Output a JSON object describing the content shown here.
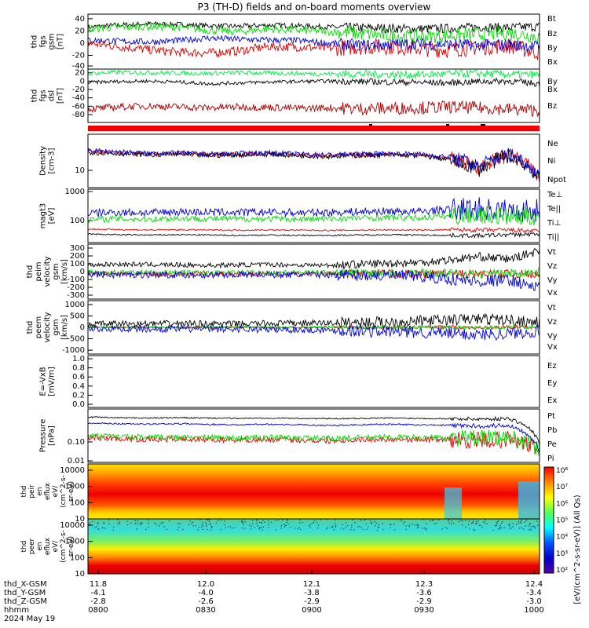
{
  "title": "P3 (TH-D) fields and on-board moments overview",
  "chart_data": [
    {
      "type": "line",
      "panel": "fgs_gsm",
      "ylabel": [
        "thd",
        "fgs",
        "gsm",
        "[nT]"
      ],
      "ylim": [
        -40,
        45
      ],
      "yticks": [
        40,
        20,
        0,
        -20,
        -40
      ],
      "series": [
        {
          "name": "Bt",
          "color": "#000000",
          "values": [
            25,
            28,
            30,
            29,
            27,
            26,
            28,
            27,
            25,
            24,
            23,
            22,
            23,
            25,
            24,
            26
          ]
        },
        {
          "name": "Bz",
          "color": "#dd0000",
          "values": [
            0,
            -5,
            -10,
            -14,
            -15,
            -12,
            -5,
            -6,
            -8,
            -6,
            -5,
            -8,
            -10,
            -6,
            -4,
            -15
          ]
        },
        {
          "name": "By",
          "color": "#00dd00",
          "values": [
            22,
            25,
            26,
            25,
            20,
            18,
            22,
            20,
            18,
            15,
            12,
            10,
            12,
            14,
            16,
            10
          ]
        },
        {
          "name": "Bx",
          "color": "#0000dd",
          "values": [
            5,
            3,
            2,
            4,
            8,
            6,
            5,
            4,
            0,
            -3,
            -2,
            -1,
            -2,
            -3,
            -2,
            -5
          ]
        }
      ]
    },
    {
      "type": "line",
      "panel": "fgs_dsl",
      "ylabel": [
        "thd",
        "fgs",
        "dsl",
        "[nT]"
      ],
      "ylim": [
        -95,
        25
      ],
      "yticks": [
        20,
        0,
        -20,
        -40,
        -60,
        -80
      ],
      "series": [
        {
          "name": "By",
          "color": "#00ee44",
          "values": [
            15,
            18,
            17,
            16,
            15,
            17,
            16,
            15,
            14,
            14,
            13,
            12,
            14,
            15,
            13,
            12
          ]
        },
        {
          "name": "Bx",
          "color": "#000000",
          "values": [
            -5,
            -3,
            -2,
            -4,
            -8,
            -6,
            -4,
            -3,
            -2,
            -3,
            -4,
            -5,
            -6,
            -3,
            -2,
            -8
          ]
        },
        {
          "name": "Bz",
          "color": "#aa0000",
          "values": [
            -65,
            -60,
            -58,
            -60,
            -62,
            -60,
            -61,
            -63,
            -62,
            -64,
            -63,
            -62,
            -60,
            -62,
            -65,
            -68
          ]
        }
      ]
    },
    {
      "type": "line",
      "panel": "density",
      "ylabel": [
        "Density",
        "[cm-3]"
      ],
      "scale": "log",
      "yticks": [
        10
      ],
      "series": [
        {
          "name": "Ne",
          "color": "#dd0000",
          "values": [
            30,
            28,
            26,
            27,
            25,
            26,
            27,
            25,
            24,
            25,
            26,
            25,
            20,
            12,
            25,
            6
          ]
        },
        {
          "name": "Ni",
          "color": "#000000",
          "values": [
            29,
            27,
            25,
            26,
            24,
            25,
            26,
            24,
            23,
            24,
            25,
            24,
            19,
            11,
            24,
            6
          ]
        },
        {
          "name": "Npot",
          "color": "#0000dd",
          "values": [
            32,
            30,
            27,
            28,
            26,
            27,
            28,
            26,
            25,
            26,
            27,
            26,
            22,
            13,
            26,
            7
          ]
        }
      ]
    },
    {
      "type": "line",
      "panel": "temperature",
      "ylabel": [
        "magt3",
        "[eV]"
      ],
      "scale": "log",
      "yticks": [
        1000,
        100
      ],
      "series": [
        {
          "name": "Te⊥",
          "color": "#dd0000",
          "values": [
            60,
            58,
            56,
            57,
            56,
            55,
            56,
            55,
            54,
            55,
            56,
            55,
            57,
            55,
            56,
            50
          ]
        },
        {
          "name": "Te||",
          "color": "#000000",
          "values": [
            40,
            38,
            37,
            38,
            37,
            36,
            37,
            36,
            36,
            37,
            38,
            37,
            36,
            35,
            38,
            40
          ]
        },
        {
          "name": "Ti⊥",
          "color": "#0000dd",
          "values": [
            220,
            240,
            230,
            250,
            240,
            235,
            240,
            230,
            235,
            250,
            260,
            250,
            300,
            320,
            260,
            280
          ]
        },
        {
          "name": "Ti||",
          "color": "#00dd00",
          "values": [
            130,
            140,
            135,
            145,
            140,
            138,
            140,
            135,
            138,
            150,
            155,
            150,
            180,
            200,
            160,
            170
          ]
        }
      ]
    },
    {
      "type": "line",
      "panel": "peim_velocity",
      "ylabel": [
        "thd",
        "peim",
        "velocity",
        "gsm",
        "[km/s]"
      ],
      "ylim": [
        -330,
        330
      ],
      "yticks": [
        300,
        200,
        100,
        0,
        -100,
        -200,
        -300
      ],
      "series": [
        {
          "name": "Vt",
          "color": "#000000",
          "values": [
            80,
            90,
            85,
            80,
            75,
            80,
            85,
            80,
            75,
            90,
            100,
            110,
            140,
            180,
            150,
            250
          ]
        },
        {
          "name": "Vz",
          "color": "#dd0000",
          "values": [
            -20,
            -25,
            -30,
            -28,
            -25,
            -30,
            -28,
            -25,
            -30,
            -28,
            -25,
            -30,
            -28,
            -30,
            -25,
            -40
          ]
        },
        {
          "name": "Vy",
          "color": "#00dd00",
          "values": [
            -10,
            -5,
            -8,
            -10,
            -12,
            -10,
            -8,
            -10,
            -12,
            -10,
            -8,
            -10,
            -20,
            -30,
            -20,
            0
          ]
        },
        {
          "name": "Vx",
          "color": "#0000dd",
          "values": [
            -30,
            -40,
            -35,
            -38,
            -40,
            -35,
            -38,
            -40,
            -35,
            -45,
            -50,
            -60,
            -90,
            -120,
            -100,
            -200
          ]
        }
      ]
    },
    {
      "type": "line",
      "panel": "peem_velocity",
      "ylabel": [
        "thd",
        "peem",
        "velocity",
        "gsm",
        "[km/s]"
      ],
      "ylim": [
        -1100,
        1100
      ],
      "yticks": [
        1000,
        500,
        0,
        -500,
        -1000
      ],
      "series": [
        {
          "name": "Vt",
          "color": "#000000",
          "values": [
            120,
            150,
            140,
            160,
            150,
            140,
            160,
            170,
            180,
            200,
            220,
            260,
            300,
            350,
            300,
            200
          ]
        },
        {
          "name": "Vz",
          "color": "#dd0000",
          "values": [
            0,
            10,
            -10,
            5,
            0,
            10,
            -5,
            0,
            10,
            -10,
            5,
            0,
            20,
            -20,
            10,
            0
          ]
        },
        {
          "name": "Vy",
          "color": "#00dd00",
          "values": [
            0,
            -10,
            5,
            0,
            -10,
            5,
            0,
            -5,
            10,
            0,
            -10,
            5,
            0,
            -10,
            10,
            0
          ]
        },
        {
          "name": "Vx",
          "color": "#0000dd",
          "values": [
            -50,
            -60,
            -70,
            -60,
            -80,
            -70,
            -90,
            -100,
            -120,
            -150,
            -180,
            -200,
            -250,
            -300,
            -250,
            -150
          ]
        }
      ]
    },
    {
      "type": "line",
      "panel": "efield",
      "ylabel": [
        "E=-VxB",
        "[mV/m]"
      ],
      "ylim": [
        0,
        1.0
      ],
      "yticks": [
        "1.0",
        "0.8",
        "0.6",
        "0.4",
        "0.2",
        "0.0"
      ],
      "series": [
        {
          "name": "Ez",
          "color": "#dd0000",
          "values": []
        },
        {
          "name": "Ey",
          "color": "#00dd00",
          "values": []
        },
        {
          "name": "Ex",
          "color": "#0000dd",
          "values": []
        }
      ]
    },
    {
      "type": "line",
      "panel": "pressure",
      "ylabel": [
        "Pressure",
        "[nPa]"
      ],
      "scale": "log",
      "yticks": [
        "0.10",
        "0.01"
      ],
      "series": [
        {
          "name": "Pt",
          "color": "#000000",
          "values": [
            0.38,
            0.36,
            0.35,
            0.36,
            0.35,
            0.34,
            0.35,
            0.34,
            0.33,
            0.34,
            0.35,
            0.34,
            0.33,
            0.32,
            0.33,
            0.03
          ]
        },
        {
          "name": "Pb",
          "color": "#dd0000",
          "values": [
            0.06,
            0.055,
            0.05,
            0.052,
            0.05,
            0.048,
            0.05,
            0.048,
            0.045,
            0.05,
            0.052,
            0.05,
            0.05,
            0.045,
            0.05,
            0.02
          ]
        },
        {
          "name": "Pe",
          "color": "#00dd00",
          "values": [
            0.07,
            0.065,
            0.06,
            0.062,
            0.06,
            0.058,
            0.06,
            0.058,
            0.055,
            0.06,
            0.062,
            0.06,
            0.058,
            0.055,
            0.06,
            0.02
          ]
        },
        {
          "name": "Pi",
          "color": "#0000dd",
          "values": [
            0.22,
            0.21,
            0.2,
            0.21,
            0.2,
            0.19,
            0.2,
            0.19,
            0.18,
            0.19,
            0.2,
            0.19,
            0.18,
            0.17,
            0.18,
            0.015
          ]
        }
      ]
    },
    {
      "type": "heatmap",
      "panel": "peir_en_eflux",
      "ylabel": [
        "thd",
        "peir",
        "en",
        "eflux",
        "eV/",
        "(cm^2-s-",
        "sr-eV)"
      ],
      "yticks": [
        10000,
        1000,
        100,
        10
      ]
    },
    {
      "type": "heatmap",
      "panel": "peer_en_eflux",
      "ylabel": [
        "thd",
        "peer",
        "en",
        "eflux",
        "eV/",
        "(cm^2-s-",
        "sr-eV)"
      ],
      "yticks": [
        10000,
        1000,
        100,
        10
      ]
    }
  ],
  "colorbar": {
    "label": "[eV/(cm^2-s-sr-eV)] (All Qs)",
    "ticks": [
      "10⁸",
      "10⁷",
      "10⁶",
      "10⁵",
      "10⁴",
      "10³",
      "10²"
    ],
    "colors": [
      "#ff0000",
      "#ff8800",
      "#ffff00",
      "#55ff55",
      "#00ffff",
      "#0055ff",
      "#0000cc",
      "#5500aa"
    ]
  },
  "xaxis": {
    "rows": [
      {
        "label": "thd_X-GSM",
        "values": [
          "11.8",
          "12.0",
          "12.1",
          "12.3",
          "12.4"
        ]
      },
      {
        "label": "thd_Y-GSM",
        "values": [
          "-4.1",
          "-4.0",
          "-3.8",
          "-3.6",
          "-3.4"
        ]
      },
      {
        "label": "thd_Z-GSM",
        "values": [
          "-2.8",
          "-2.6",
          "-2.9",
          "-2.9",
          "-3.0"
        ]
      },
      {
        "label": "hhmm",
        "values": [
          "0800",
          "0830",
          "0900",
          "0930",
          "1000"
        ]
      }
    ],
    "date": "2024 May 19"
  }
}
